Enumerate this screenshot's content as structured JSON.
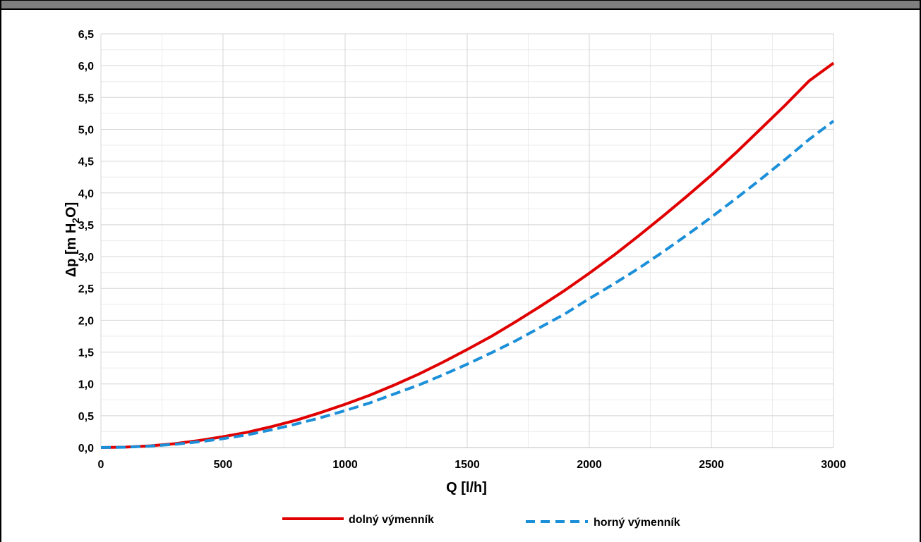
{
  "chart_data": {
    "type": "line",
    "xlabel": "Q [l/h]",
    "ylabel": "Δp [m H2O]",
    "ylabel_parts": [
      "Δp [m H",
      "2",
      "O]"
    ],
    "xlim": [
      0,
      3000
    ],
    "ylim": [
      0,
      6.5
    ],
    "x_ticks": [
      "0",
      "500",
      "1000",
      "1500",
      "2000",
      "2500",
      "3000"
    ],
    "y_ticks": [
      "0,0",
      "0,5",
      "1,0",
      "1,5",
      "2,0",
      "2,5",
      "3,0",
      "3,5",
      "4,0",
      "4,5",
      "5,0",
      "5,5",
      "6,0",
      "6,5"
    ],
    "grid": true,
    "legend_position": "bottom",
    "x": [
      0,
      100,
      200,
      300,
      400,
      500,
      600,
      700,
      800,
      900,
      1000,
      1100,
      1200,
      1300,
      1400,
      1500,
      1600,
      1700,
      1800,
      1900,
      2000,
      2100,
      2200,
      2300,
      2400,
      2500,
      2600,
      2700,
      2800,
      2900,
      3000
    ],
    "series": [
      {
        "name": "dolný výmenník",
        "color": "#e00000",
        "style": "solid",
        "values": [
          0.0,
          0.007,
          0.027,
          0.06,
          0.11,
          0.17,
          0.24,
          0.33,
          0.43,
          0.55,
          0.68,
          0.82,
          0.98,
          1.15,
          1.34,
          1.54,
          1.75,
          1.98,
          2.22,
          2.47,
          2.74,
          3.02,
          3.32,
          3.63,
          3.95,
          4.28,
          4.63,
          5.0,
          5.37,
          5.76,
          6.04
        ]
      },
      {
        "name": "horný výmenník",
        "color": "#1b8fd8",
        "style": "dashed",
        "values": [
          0.0,
          0.006,
          0.023,
          0.05,
          0.09,
          0.14,
          0.2,
          0.28,
          0.37,
          0.47,
          0.58,
          0.7,
          0.84,
          0.98,
          1.14,
          1.31,
          1.49,
          1.68,
          1.89,
          2.1,
          2.34,
          2.57,
          2.81,
          3.07,
          3.34,
          3.62,
          3.91,
          4.21,
          4.52,
          4.84,
          5.13
        ]
      }
    ]
  }
}
